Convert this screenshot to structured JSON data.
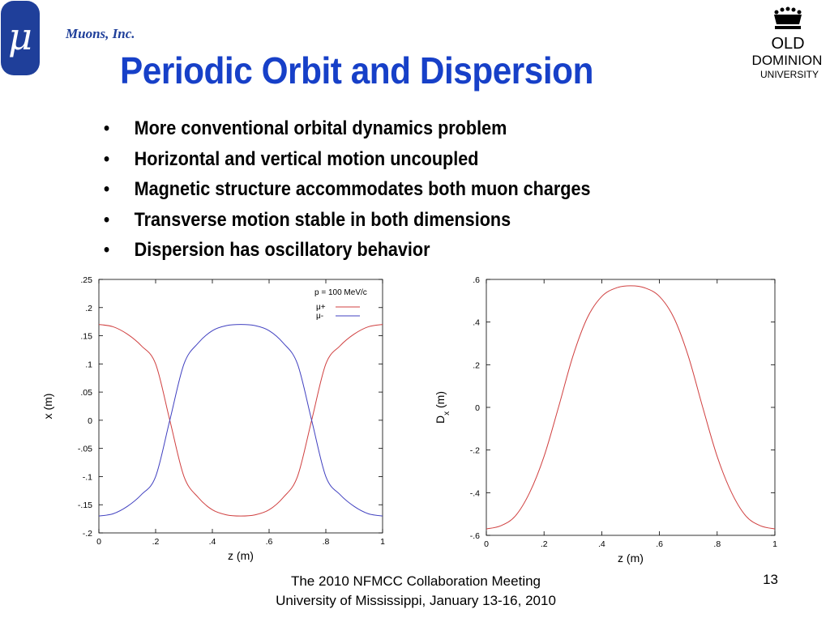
{
  "header": {
    "logo_symbol": "μ",
    "company": "Muons, Inc.",
    "title": "Periodic Orbit and Dispersion",
    "odu_logo": {
      "line1": "OLD",
      "line2": "DOMINION",
      "line3": "UNIVERSITY"
    }
  },
  "bullets": [
    "More conventional orbital dynamics problem",
    "Horizontal and vertical motion uncoupled",
    "Magnetic structure accommodates both muon charges",
    "Transverse motion stable in both dimensions",
    "Dispersion has oscillatory behavior"
  ],
  "colors": {
    "title": "#1740c8",
    "brand": "#1f3f9a",
    "mu_plus": "#d04040",
    "mu_minus": "#4040c0"
  },
  "chart_data": [
    {
      "type": "line",
      "xlabel": "z (m)",
      "ylabel": "x (m)",
      "xlim": [
        0,
        1
      ],
      "ylim": [
        -0.2,
        0.25
      ],
      "xticks": [
        0,
        0.2,
        0.4,
        0.6,
        0.8,
        1
      ],
      "yticks": [
        -0.2,
        -0.15,
        -0.1,
        -0.05,
        0,
        0.05,
        0.1,
        0.15,
        0.2,
        0.25
      ],
      "legend_title": "p = 100 MeV/c",
      "legend_position": "top-right",
      "grid": false,
      "x": [
        0,
        0.05,
        0.1,
        0.15,
        0.2,
        0.25,
        0.3,
        0.35,
        0.4,
        0.45,
        0.5,
        0.55,
        0.6,
        0.65,
        0.7,
        0.75,
        0.8,
        0.85,
        0.9,
        0.95,
        1
      ],
      "series": [
        {
          "name": "μ+",
          "values": [
            0.17,
            0.166,
            0.153,
            0.132,
            0.1,
            0.0,
            -0.1,
            -0.137,
            -0.159,
            -0.168,
            -0.17,
            -0.168,
            -0.159,
            -0.137,
            -0.1,
            0.0,
            0.1,
            0.132,
            0.153,
            0.166,
            0.17
          ]
        },
        {
          "name": "μ-",
          "values": [
            -0.17,
            -0.166,
            -0.153,
            -0.132,
            -0.1,
            0.0,
            0.1,
            0.137,
            0.159,
            0.168,
            0.17,
            0.168,
            0.159,
            0.137,
            0.1,
            0.0,
            -0.1,
            -0.132,
            -0.153,
            -0.166,
            -0.17
          ]
        }
      ]
    },
    {
      "type": "line",
      "xlabel": "z (m)",
      "ylabel": "Dx (m)",
      "xlim": [
        0,
        1
      ],
      "ylim": [
        -0.6,
        0.6
      ],
      "xticks": [
        0,
        0.2,
        0.4,
        0.6,
        0.8,
        1
      ],
      "yticks": [
        -0.6,
        -0.4,
        -0.2,
        0,
        0.2,
        0.4,
        0.6
      ],
      "grid": false,
      "x": [
        0,
        0.05,
        0.1,
        0.15,
        0.2,
        0.25,
        0.3,
        0.35,
        0.4,
        0.45,
        0.5,
        0.55,
        0.6,
        0.65,
        0.7,
        0.75,
        0.8,
        0.85,
        0.9,
        0.95,
        1
      ],
      "series": [
        {
          "values": [
            -0.57,
            -0.555,
            -0.51,
            -0.4,
            -0.23,
            0.0,
            0.24,
            0.42,
            0.52,
            0.56,
            0.57,
            0.56,
            0.52,
            0.42,
            0.24,
            0.0,
            -0.23,
            -0.4,
            -0.51,
            -0.555,
            -0.57
          ]
        }
      ]
    }
  ],
  "footer": {
    "line1": "The 2010 NFMCC Collaboration Meeting",
    "line2": "University of Mississippi, January 13-16, 2010",
    "page_number": "13"
  }
}
